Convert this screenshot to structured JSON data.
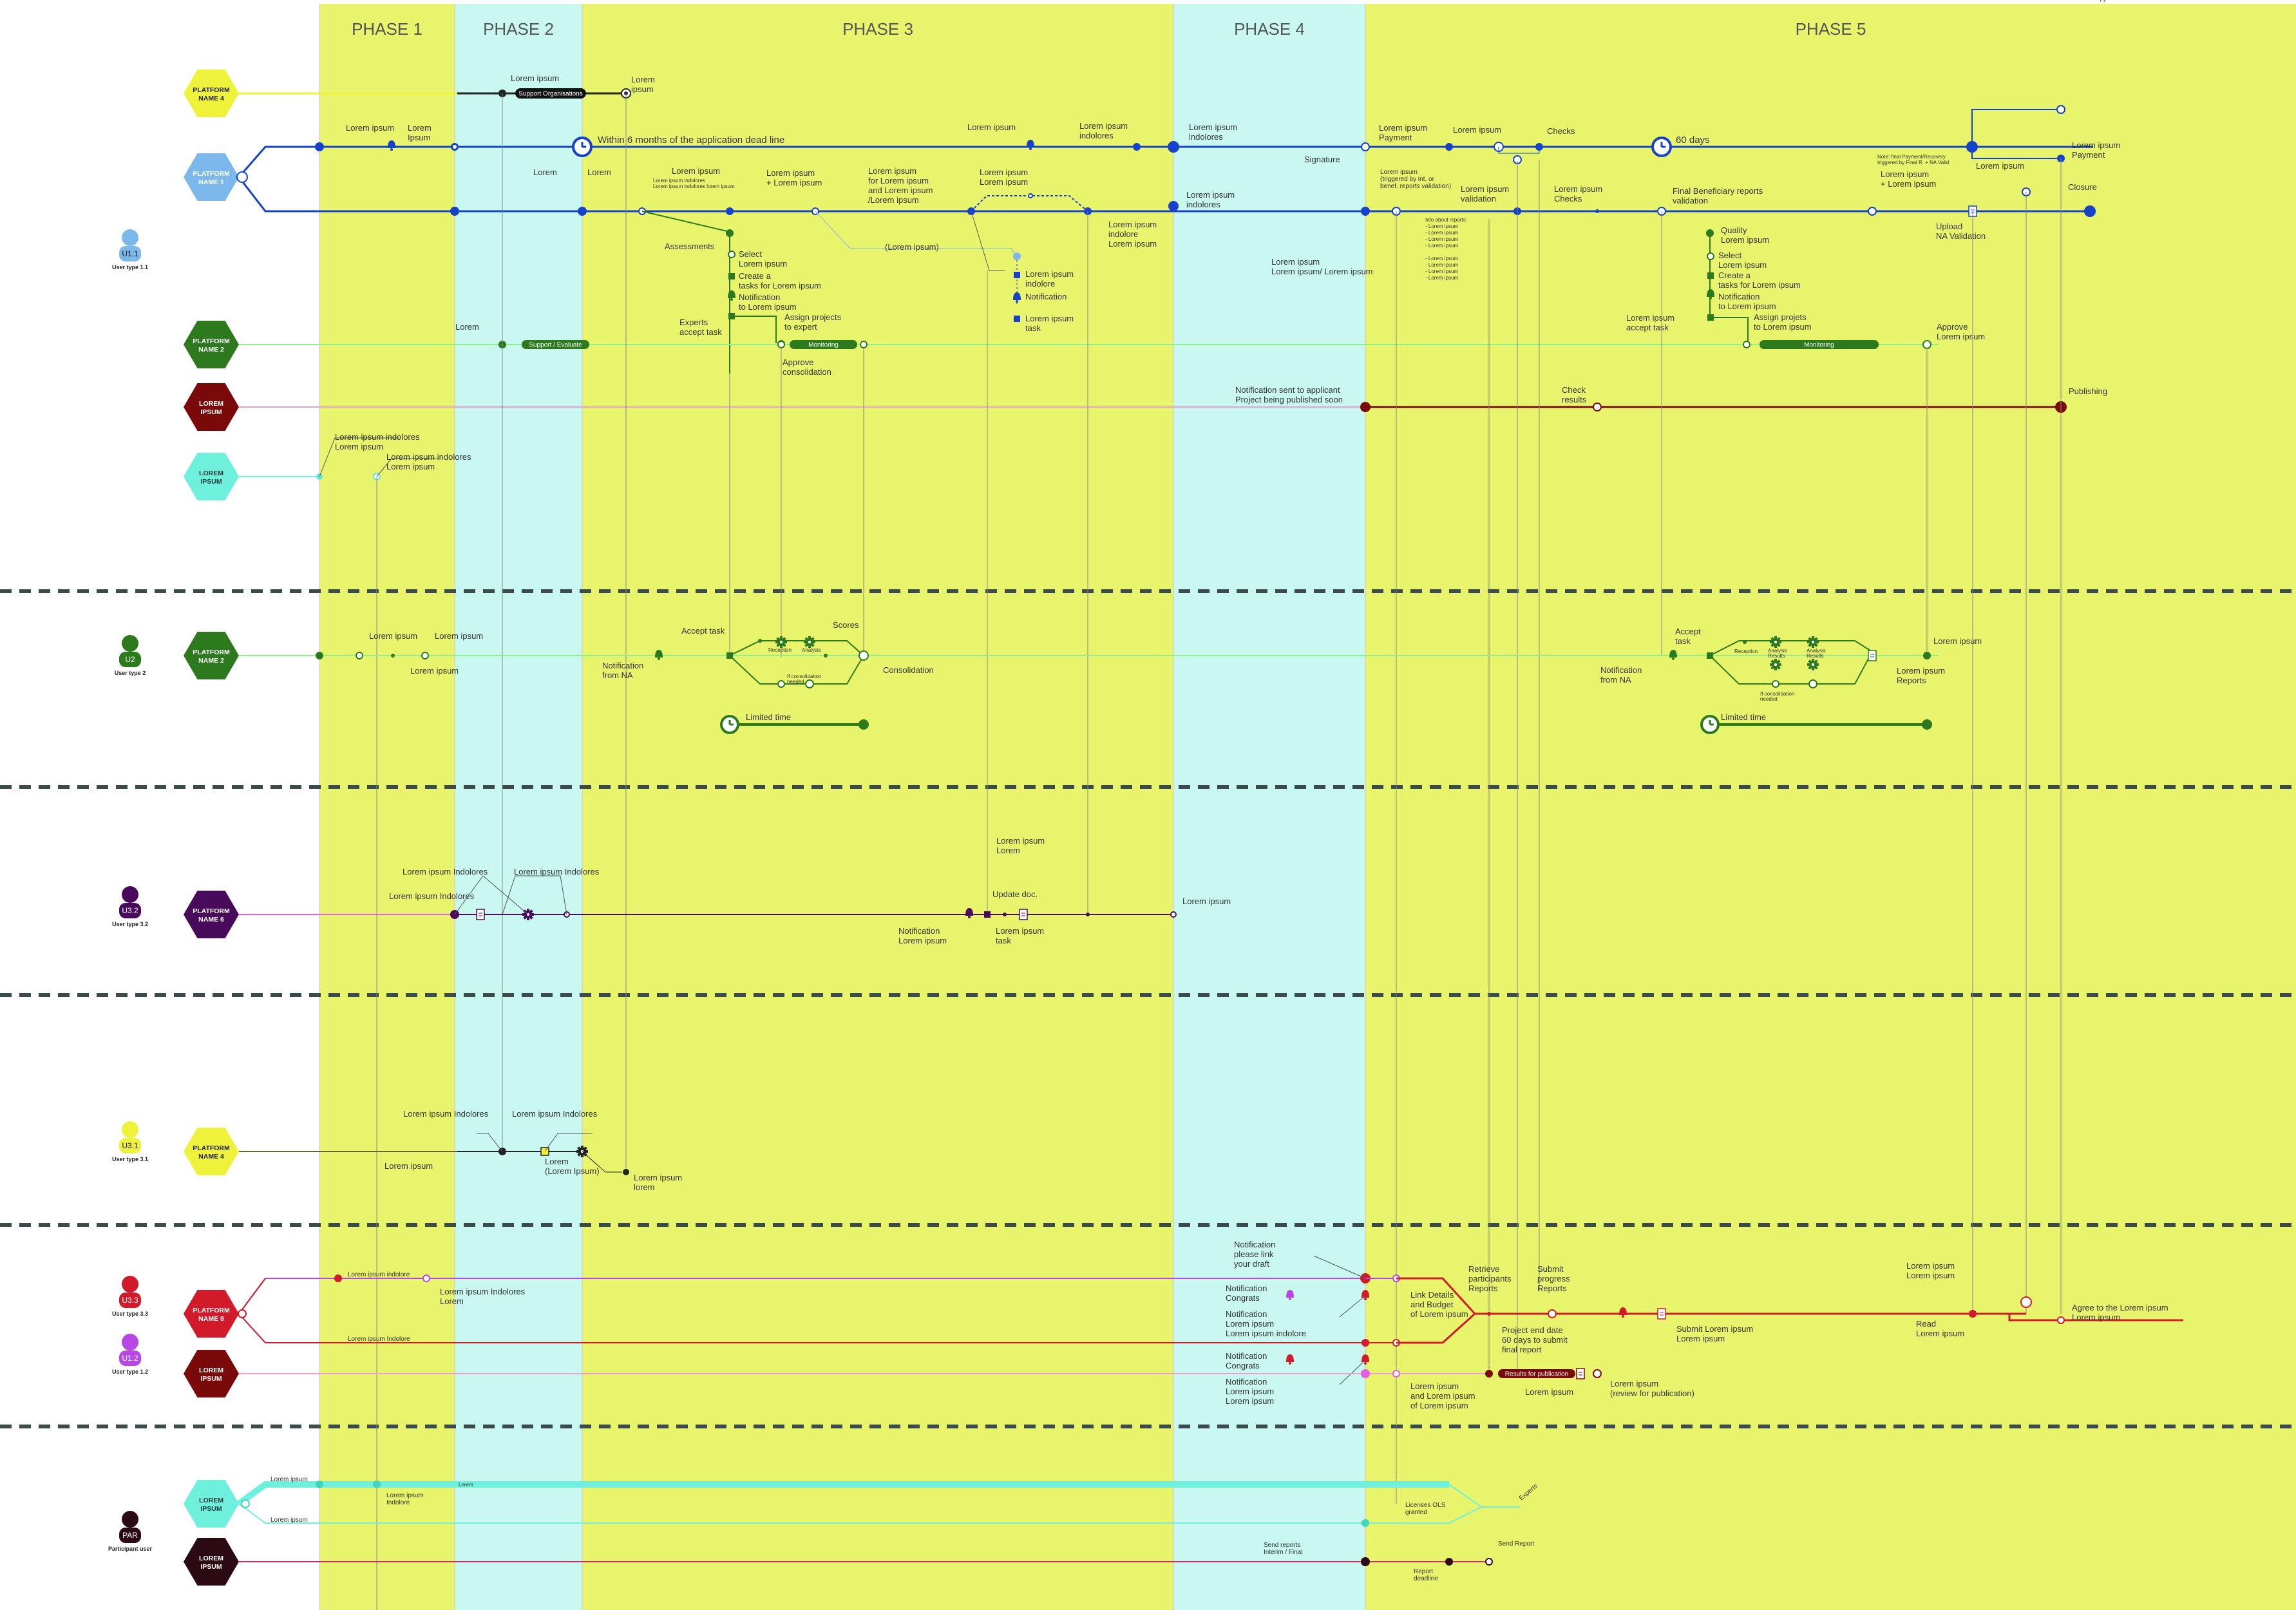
{
  "phases": [
    {
      "label": "PHASE 1",
      "color": "#e8f56c"
    },
    {
      "label": "PHASE 2",
      "color": "#c8f8f0"
    },
    {
      "label": "PHASE 3",
      "color": "#e8f56c"
    },
    {
      "label": "PHASE 4",
      "color": "#c8f8f0"
    },
    {
      "label": "PHASE 5",
      "color": "#e8f56c"
    }
  ],
  "users": [
    {
      "code": "U1.1",
      "type": "User type 1.1",
      "color": "#7db8ec"
    },
    {
      "code": "U2",
      "type": "User type 2",
      "color": "#2d7a1e"
    },
    {
      "code": "U3.2",
      "type": "User type 3.2",
      "color": "#4a0a5c"
    },
    {
      "code": "U3.1",
      "type": "User type 3.1",
      "color": "#eef23a"
    },
    {
      "code": "U3.3",
      "type": "User type 3.3",
      "color": "#d11a2a"
    },
    {
      "code": "U1.2",
      "type": "User type 1.2",
      "color": "#b947e6"
    },
    {
      "code": "PAR",
      "type": "Participant user",
      "color": "#2b0a14"
    }
  ],
  "platforms": [
    {
      "label": [
        "PLATFORM",
        "NAME 4"
      ],
      "color": "#eef23a",
      "text": "#222222"
    },
    {
      "label": [
        "PLATFORM",
        "NAME 1"
      ],
      "color": "#7db8ec",
      "text": "#ffffff"
    },
    {
      "label": [
        "PLATFORM",
        "NAME 2"
      ],
      "color": "#2d7a1e",
      "text": "#ffffff"
    },
    {
      "label": [
        "LOREM",
        "IPSUM"
      ],
      "color": "#7a0a0a",
      "text": "#ffffff"
    },
    {
      "label": [
        "LOREM",
        "IPSUM"
      ],
      "color": "#6ff0dc",
      "text": "#1a3a3a"
    },
    {
      "label": [
        "PLATFORM",
        "NAME 2"
      ],
      "color": "#2d7a1e",
      "text": "#ffffff"
    },
    {
      "label": [
        "PLATFORM",
        "NAME 6"
      ],
      "color": "#4a0a5c",
      "text": "#ffffff"
    },
    {
      "label": [
        "PLATFORM",
        "NAME 4"
      ],
      "color": "#eef23a",
      "text": "#222222"
    },
    {
      "label": [
        "PLATFORM",
        "NAME 8"
      ],
      "color": "#d11a2a",
      "text": "#ffffff"
    },
    {
      "label": [
        "LOREM",
        "IPSUM"
      ],
      "color": "#7a0a0a",
      "text": "#ffffff"
    },
    {
      "label": [
        "LOREM",
        "IPSUM"
      ],
      "color": "#6ff0dc",
      "text": "#1a3a3a"
    },
    {
      "label": [
        "LOREM",
        "IPSUM"
      ],
      "color": "#2b0a14",
      "text": "#ffffff"
    }
  ],
  "pills": [
    "Support Organisations",
    "Support / Evaluate",
    "Monitoring",
    "Monitoring",
    "Results for publication"
  ],
  "labels": {
    "p4_a": "Lorem ipsum",
    "p4_b": [
      "Lorem",
      "ipsum"
    ],
    "p1_a": "Lorem ipsum",
    "p1_b": [
      "Lorem",
      "Ipsum"
    ],
    "deadline": "Within 6 months of the application dead line",
    "p1_c": "Lorem ipsum",
    "p1_d": [
      "Lorem ipsum",
      "indolores"
    ],
    "p1_e": [
      "Lorem ipsum",
      "indolores"
    ],
    "signature": "Signature",
    "pay": [
      "Lorem ipsum",
      "Payment"
    ],
    "pay2": "Lorem ipsum",
    "checks": "Checks",
    "sixty": "60 days",
    "recovery": [
      "Lorem ipsum",
      "Recovery"
    ],
    "payment": [
      "Lorem ipsum",
      "Payment"
    ],
    "note": [
      "Note:  final Payment/Recovery",
      "triggered by Final R. + NA Valid."
    ],
    "p1_f": "Lorem ipsum",
    "closure": "Closure",
    "r_lorem": "Lorem",
    "r_lorem2": "Lorem",
    "r_li": "Lorem ipsum",
    "r_li_small": [
      "Lorem ipsum indolores",
      "Lorem ipsum indolores lorem ipsum"
    ],
    "r_plus": [
      "Lorem ipsum",
      "+ Lorem ipsum"
    ],
    "r_for": [
      "Lorem ipsum",
      "for Lorem ipsum",
      "and Lorem ipsum",
      "/Lorem ipsum"
    ],
    "r_li2": [
      "Lorem ipsum",
      "Lorem ipsum"
    ],
    "r_indolores": [
      "Lorem ipsum",
      "indolores"
    ],
    "r_indolore_l": [
      "Lorem ipsum",
      "indolore",
      "Lorem ipsum"
    ],
    "r_trig": [
      "Lorem ipsum",
      "(triggered by int. or",
      "benef. reports validation)"
    ],
    "r_valid": [
      "Lorem ipsum",
      "validation"
    ],
    "r_checks": [
      "Lorem ipsum",
      "Checks"
    ],
    "r_final": [
      "Final Beneficiary reports",
      "validation"
    ],
    "r_plus2": [
      "Lorem ipsum",
      "+ Lorem ipsum"
    ],
    "r_upload": [
      "Upload",
      "NA Validation"
    ],
    "assess": "Assessments",
    "sel": [
      "Select",
      "Lorem ipsum"
    ],
    "create": [
      "Create a",
      "tasks for Lorem ipsum"
    ],
    "notif": [
      "Notification",
      "to Lorem ipsum"
    ],
    "experts": [
      "Experts",
      "accept task"
    ],
    "assign": [
      "Assign projects",
      "to expert"
    ],
    "approve": [
      "Approve",
      "consolidation"
    ],
    "paren": "(Lorem ipsum)",
    "r_li_ind": [
      "Lorem ipsum",
      "indolore"
    ],
    "r_notif": "Notification",
    "r_task": [
      "Lorem ipsum",
      "task"
    ],
    "r_li_slash": [
      "Lorem ipsum",
      "Lorem ipsum/ Lorem ipsum"
    ],
    "r_list": [
      "Info about reports:",
      "- Lorem ipsum",
      "- Lorem ipsum",
      "- Lorem ipsum",
      "- Lorem ipsum",
      "",
      "- Lorem ipsum",
      "- Lorem ipsum",
      "- Lorem ipsum",
      "- Lorem ipsum"
    ],
    "q": [
      "Quality",
      "Lorem ipsum"
    ],
    "sel2": [
      "Select",
      "Lorem ipsum"
    ],
    "create2": [
      "Create a",
      "tasks for Lorem ipsum"
    ],
    "notif2": [
      "Notification",
      "to Lorem ipsum"
    ],
    "accept2": [
      "Lorem ipsum",
      "accept task"
    ],
    "assign2": [
      "Assign projets",
      "to Lorem ipsum"
    ],
    "approve2": [
      "Approve",
      "Lorem ipsum"
    ],
    "g_lorem": "Lorem",
    "notif_app": [
      "Notification sent to applicant",
      "Project being published soon"
    ],
    "check_res": [
      "Check",
      "results"
    ],
    "publishing": "Publishing",
    "c_a": [
      "Lorem ipsum indolores",
      "Lorem ipsum"
    ],
    "c_b": [
      "Lorem ipsum indolores",
      "Lorem ipsum"
    ],
    "u2_a": "Lorem ipsum",
    "u2_b": "Lorem ipsum",
    "u2_c": "Lorem ipsum",
    "u2_notif": [
      "Notification",
      "from NA"
    ],
    "u2_accept": "Accept task",
    "u2_scores": "Scores",
    "u2_recep": "Reception",
    "u2_analysis": "Analysis",
    "u2_ifcons": [
      "If consolidation",
      "needed"
    ],
    "u2_consol": "Consolidation",
    "u2_limited": "Limited time",
    "u2_accept2": [
      "Accept",
      "task"
    ],
    "u2_notif2": [
      "Notification",
      "from NA"
    ],
    "u2_recep2": "Reception",
    "u2_an2": [
      "Analysis",
      "Results"
    ],
    "u2_an3": [
      "Analysis",
      "Results"
    ],
    "u2_ifcons2": [
      "If consolidation",
      "needed"
    ],
    "u2_right": "Lorem ipsum",
    "u2_reports": [
      "Lorem ipsum",
      "Reports"
    ],
    "u2_limited2": "Limited time",
    "u32_a": "Lorem ipsum Indolores",
    "u32_b": "Lorem ipsum Indolores",
    "u32_c": "Lorem ipsum Indolores",
    "u32_lorem": [
      "Lorem ipsum",
      "Lorem"
    ],
    "u32_update": "Update doc.",
    "u32_notif": [
      "Notification",
      "Lorem ipsum"
    ],
    "u32_task": [
      "Lorem ipsum",
      "task"
    ],
    "u32_right": "Lorem ipsum",
    "u31_a": "Lorem ipsum Indolores",
    "u31_b": "Lorem ipsum Indolores",
    "u31_c": "Lorem ipsum",
    "u31_d": [
      "Lorem",
      "(Lorem Ipsum)"
    ],
    "u31_e": [
      "Lorem ipsum",
      "lorem"
    ],
    "u33_a": "Lorem ipsum indolore",
    "u33_b": [
      "Lorem ipsum Indolores",
      "Lorem"
    ],
    "u33_c": "Lorem ipsum Indolore",
    "u33_n1": [
      "Notification",
      "please link",
      "your draft"
    ],
    "u33_n2": [
      "Notification",
      "Congrats"
    ],
    "u33_n3": [
      "Notification",
      "Lorem ipsum",
      "Lorem ipsum indolore"
    ],
    "u33_n4": [
      "Notification",
      "Congrats"
    ],
    "u33_n5": [
      "Notification",
      "Lorem ipsum",
      "Lorem ipsum"
    ],
    "u33_link": [
      "Link Details",
      "and Budget",
      "of Lorem ipsum"
    ],
    "u33_retr": [
      "Retrieve",
      "participants",
      "Reports"
    ],
    "u33_submit": [
      "Submit",
      "progress",
      "Reports"
    ],
    "u33_proj": [
      "Project end date",
      "60 days to submit",
      "final report"
    ],
    "u33_submit2": [
      "Submit Lorem ipsum",
      "Lorem ipsum"
    ],
    "u33_li_r": [
      "Lorem ipsum",
      "Lorem ipsum"
    ],
    "u33_read": [
      "Read",
      "Lorem ipsum"
    ],
    "u33_agree": [
      "Agree to the Lorem ipsum",
      "Lorem ipsum"
    ],
    "u12_a": [
      "Lorem ipsum",
      "and Lorem ipsum",
      "of Lorem ipsum"
    ],
    "u12_b": "Lorem ipsum",
    "u12_c": [
      "Lorem ipsum",
      "(review for publication)"
    ],
    "par_a": "Lorem ipsum",
    "par_b": [
      "Lorem ipsum",
      "Indolore"
    ],
    "par_c": "Lorem ipsum",
    "par_lic": [
      "Licenses OLS",
      "granted"
    ],
    "par_exp": "Experts",
    "par_send": [
      "Send reports",
      "Interim / Final"
    ],
    "par_deadline": [
      "Report",
      "deadline"
    ],
    "par_send2": "Send Report",
    "bar_small": "Lorem"
  },
  "colors": {
    "navy": "#1542c8",
    "yellow": "#eef23a",
    "green": "#2d7a1e",
    "lightgreen": "#8ef08a",
    "maroon": "#7a0a0a",
    "pink": "#e8a0d0",
    "cyan": "#6ff0dc",
    "purple": "#b947e6",
    "magenta": "#e060e0",
    "red": "#d11a2a"
  }
}
